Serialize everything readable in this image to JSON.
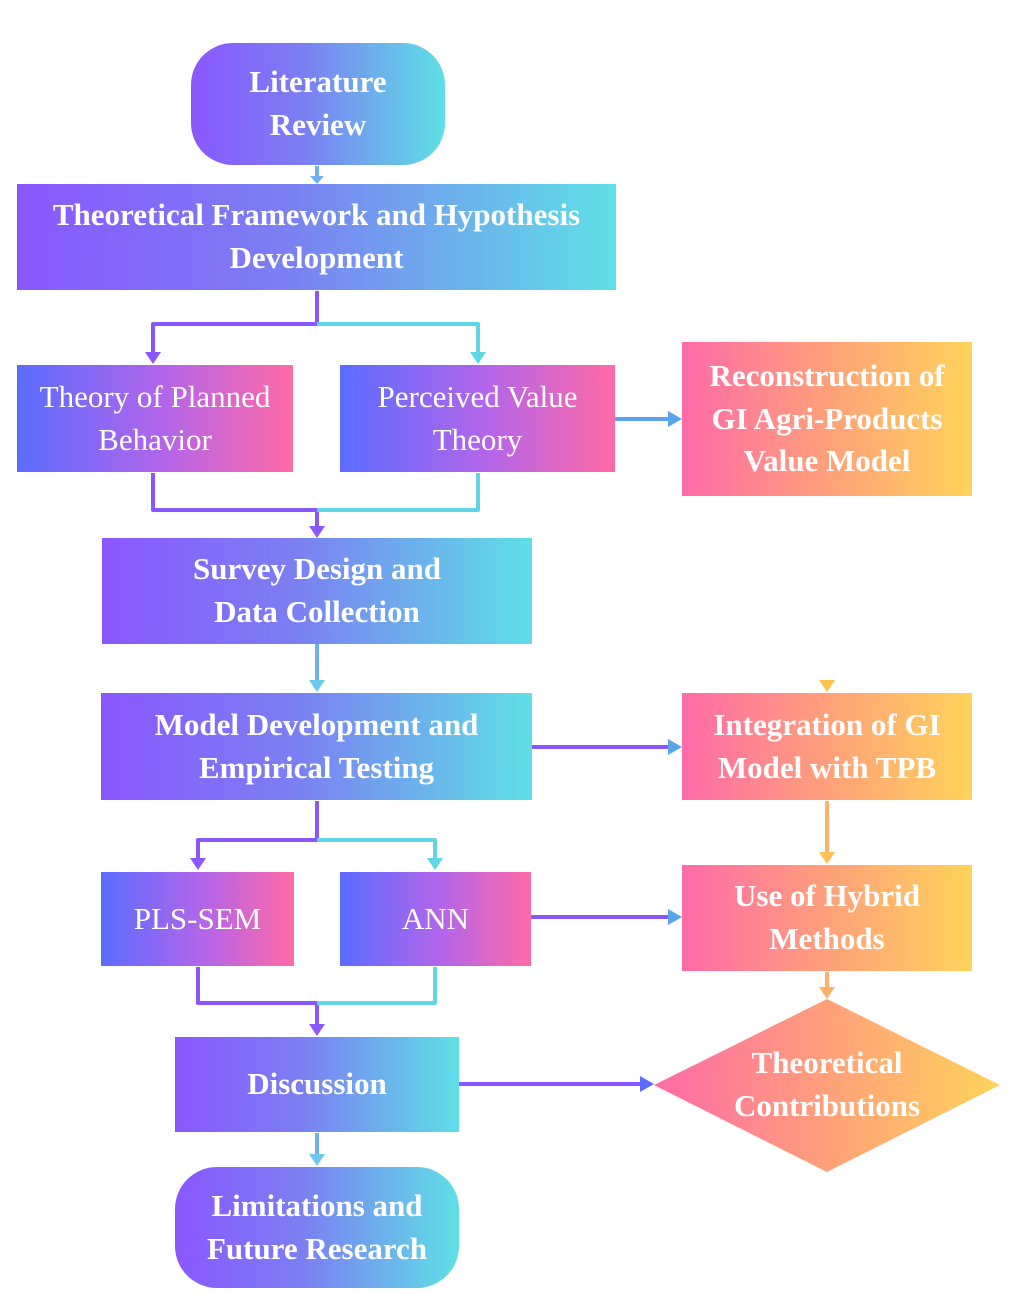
{
  "nodes": {
    "literature_review": "Literature Review",
    "theoretical_framework": "Theoretical Framework and Hypothesis Development",
    "tpb": "Theory of Planned Behavior",
    "pvt": "Perceived Value Theory",
    "reconstruction": "Reconstruction of GI Agri-Products Value Model",
    "survey": "Survey Design and Data Collection",
    "model_dev": "Model Development and Empirical Testing",
    "integration": "Integration of GI Model with TPB",
    "pls_sem": "PLS-SEM",
    "ann": "ANN",
    "hybrid": "Use of Hybrid Methods",
    "discussion": "Discussion",
    "contributions": "Theoretical Contributions",
    "limitations": "Limitations and Future Research"
  },
  "colors": {
    "purple": "#8a57ff",
    "cyan": "#5ee0e6",
    "blue": "#5a6cff",
    "pink": "#ff6aa6",
    "orange_yellow": "#ffd35a"
  }
}
